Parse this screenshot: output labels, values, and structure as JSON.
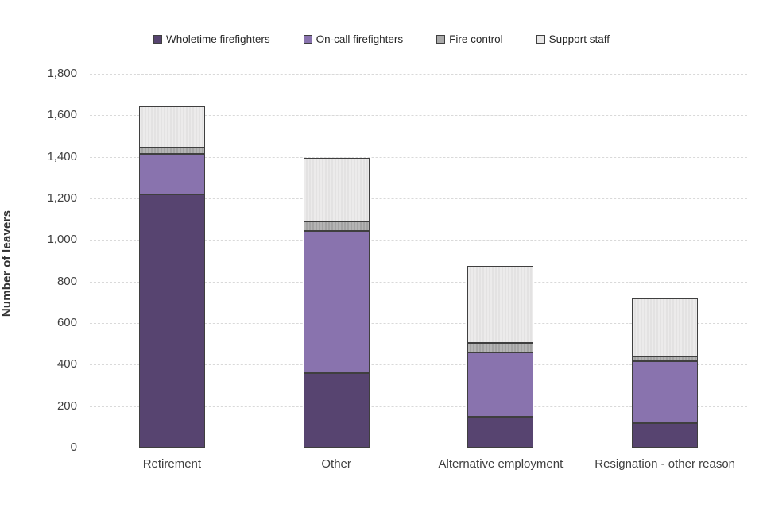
{
  "chart_data": {
    "type": "bar",
    "stacked": true,
    "title": "",
    "xlabel": "",
    "ylabel": "Number of leavers",
    "ylim": [
      0,
      1800
    ],
    "ytick_step": 200,
    "grid": true,
    "legend_position": "top",
    "categories": [
      "Retirement",
      "Other",
      "Alternative employment",
      "Resignation - other reason"
    ],
    "series": [
      {
        "name": "Wholetime firefighters",
        "color": "#574470",
        "texture": "none",
        "values": [
          1220,
          360,
          150,
          120
        ]
      },
      {
        "name": "On-call firefighters",
        "color": "#8973AE",
        "texture": "none",
        "values": [
          195,
          685,
          310,
          295
        ]
      },
      {
        "name": "Fire control",
        "color": "#a9a9a9",
        "texture": "gray",
        "values": [
          30,
          45,
          45,
          25
        ]
      },
      {
        "name": "Support staff",
        "color": "#e8e7e7",
        "texture": "support",
        "values": [
          200,
          305,
          370,
          280
        ]
      }
    ],
    "totals": [
      1645,
      1395,
      875,
      720
    ],
    "colors": {
      "gridline": "#d9d9d9",
      "segment_border": "#3f3f3f",
      "text": "#404040"
    }
  }
}
